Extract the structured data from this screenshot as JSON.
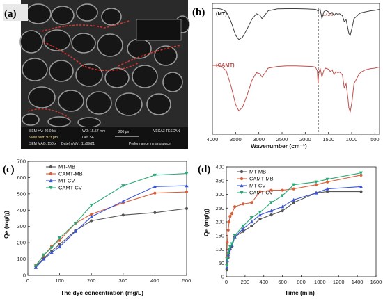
{
  "panels": {
    "a": {
      "label": "(a)"
    },
    "b": {
      "label": "(b)"
    },
    "c": {
      "label": "(c)"
    },
    "d": {
      "label": "(d)"
    }
  },
  "sem": {
    "hv_label": "SEM HV: 20.0 kV",
    "wd_label": "WD: 15.57 mm",
    "scale_value": "200 μm",
    "brand": "VEGA3 TESCAN",
    "view_field": "View field: 923 μm",
    "det": "Det: SE",
    "mag": "SEM MAG: 150 x",
    "date": "Date(m/d/y): 11/09/21",
    "perf": "Performance in nanospace"
  },
  "chart_data": [
    {
      "panel": "b",
      "type": "line",
      "xlabel": "Wavenumber (cm⁻¹)",
      "xlim": [
        4000,
        400
      ],
      "xticks": [
        4000,
        3500,
        3000,
        2500,
        2000,
        1500,
        1000,
        500
      ],
      "annotation": "1725",
      "annotation_x": 1725,
      "series": [
        {
          "name": "(MT)",
          "color": "#404040",
          "points": [
            [
              4000,
              0.97
            ],
            [
              3900,
              0.97
            ],
            [
              3800,
              0.955
            ],
            [
              3700,
              0.9
            ],
            [
              3600,
              0.7
            ],
            [
              3500,
              0.42
            ],
            [
              3430,
              0.33
            ],
            [
              3350,
              0.38
            ],
            [
              3250,
              0.55
            ],
            [
              3150,
              0.75
            ],
            [
              3050,
              0.86
            ],
            [
              2980,
              0.83
            ],
            [
              2930,
              0.76
            ],
            [
              2880,
              0.82
            ],
            [
              2800,
              0.92
            ],
            [
              2600,
              0.96
            ],
            [
              2400,
              0.965
            ],
            [
              2200,
              0.965
            ],
            [
              2000,
              0.96
            ],
            [
              1850,
              0.955
            ],
            [
              1780,
              0.95
            ],
            [
              1740,
              0.93
            ],
            [
              1725,
              0.9
            ],
            [
              1710,
              0.93
            ],
            [
              1680,
              0.95
            ],
            [
              1640,
              0.76
            ],
            [
              1600,
              0.9
            ],
            [
              1560,
              0.93
            ],
            [
              1500,
              0.9
            ],
            [
              1460,
              0.86
            ],
            [
              1420,
              0.89
            ],
            [
              1380,
              0.82
            ],
            [
              1340,
              0.87
            ],
            [
              1300,
              0.85
            ],
            [
              1260,
              0.86
            ],
            [
              1200,
              0.82
            ],
            [
              1160,
              0.7
            ],
            [
              1120,
              0.74
            ],
            [
              1080,
              0.55
            ],
            [
              1060,
              0.45
            ],
            [
              1030,
              0.42
            ],
            [
              990,
              0.58
            ],
            [
              950,
              0.76
            ],
            [
              900,
              0.8
            ],
            [
              850,
              0.85
            ],
            [
              800,
              0.88
            ],
            [
              700,
              0.9
            ],
            [
              600,
              0.92
            ],
            [
              500,
              0.93
            ],
            [
              400,
              0.95
            ]
          ]
        },
        {
          "name": "(CAMT)",
          "color": "#c0504d",
          "points": [
            [
              4000,
              0.95
            ],
            [
              3900,
              0.95
            ],
            [
              3800,
              0.93
            ],
            [
              3700,
              0.85
            ],
            [
              3600,
              0.58
            ],
            [
              3500,
              0.25
            ],
            [
              3430,
              0.13
            ],
            [
              3350,
              0.2
            ],
            [
              3250,
              0.42
            ],
            [
              3150,
              0.68
            ],
            [
              3050,
              0.82
            ],
            [
              2980,
              0.8
            ],
            [
              2930,
              0.74
            ],
            [
              2880,
              0.8
            ],
            [
              2800,
              0.9
            ],
            [
              2600,
              0.93
            ],
            [
              2400,
              0.94
            ],
            [
              2200,
              0.94
            ],
            [
              2000,
              0.935
            ],
            [
              1850,
              0.93
            ],
            [
              1780,
              0.92
            ],
            [
              1740,
              0.85
            ],
            [
              1725,
              0.62
            ],
            [
              1710,
              0.8
            ],
            [
              1680,
              0.9
            ],
            [
              1640,
              0.74
            ],
            [
              1600,
              0.86
            ],
            [
              1560,
              0.9
            ],
            [
              1500,
              0.88
            ],
            [
              1460,
              0.84
            ],
            [
              1420,
              0.87
            ],
            [
              1380,
              0.78
            ],
            [
              1340,
              0.84
            ],
            [
              1300,
              0.82
            ],
            [
              1260,
              0.83
            ],
            [
              1200,
              0.78
            ],
            [
              1160,
              0.55
            ],
            [
              1120,
              0.62
            ],
            [
              1080,
              0.35
            ],
            [
              1060,
              0.18
            ],
            [
              1030,
              0.12
            ],
            [
              990,
              0.32
            ],
            [
              950,
              0.62
            ],
            [
              900,
              0.7
            ],
            [
              850,
              0.78
            ],
            [
              800,
              0.83
            ],
            [
              700,
              0.87
            ],
            [
              600,
              0.89
            ],
            [
              500,
              0.9
            ],
            [
              400,
              0.92
            ]
          ]
        }
      ]
    },
    {
      "panel": "c",
      "type": "line",
      "xlabel": "The dye concentration (mg/L)",
      "ylabel": "Qe (mg/g)",
      "xlim": [
        0,
        500
      ],
      "ylim": [
        0,
        700
      ],
      "xticks": [
        0,
        100,
        200,
        300,
        400,
        500
      ],
      "yticks": [
        0,
        100,
        200,
        300,
        400,
        500,
        600,
        700
      ],
      "legend": "top-left",
      "x": [
        25,
        50,
        75,
        100,
        150,
        200,
        300,
        400,
        500
      ],
      "series": [
        {
          "name": "MT-MB",
          "color": "#555555",
          "marker": "circle",
          "values": [
            55,
            105,
            150,
            190,
            275,
            335,
            370,
            385,
            410
          ]
        },
        {
          "name": "CAMT-MB",
          "color": "#d95f3b",
          "marker": "circle",
          "values": [
            62,
            120,
            180,
            215,
            320,
            375,
            445,
            505,
            512
          ]
        },
        {
          "name": "MT-CV",
          "color": "#3a54d8",
          "marker": "triangle",
          "values": [
            48,
            100,
            140,
            175,
            270,
            360,
            455,
            545,
            550
          ]
        },
        {
          "name": "CAMT-CV",
          "color": "#2aa876",
          "marker": "triangle-down",
          "values": [
            58,
            125,
            170,
            230,
            320,
            430,
            550,
            615,
            625
          ]
        }
      ]
    },
    {
      "panel": "d",
      "type": "line",
      "xlabel": "Time (min)",
      "ylabel": "Qe (mg/g)",
      "xlim": [
        0,
        1600
      ],
      "ylim": [
        0,
        400
      ],
      "xticks": [
        0,
        200,
        400,
        600,
        800,
        1000,
        1200,
        1400,
        1600
      ],
      "yticks": [
        0,
        50,
        100,
        150,
        200,
        250,
        300,
        350,
        400
      ],
      "legend": "top-left",
      "x": [
        5,
        10,
        20,
        30,
        40,
        60,
        90,
        180,
        270,
        360,
        480,
        600,
        720,
        960,
        1080,
        1440
      ],
      "series": [
        {
          "name": "MT-MB",
          "color": "#555555",
          "marker": "circle",
          "values": [
            25,
            55,
            70,
            85,
            100,
            110,
            145,
            165,
            185,
            210,
            225,
            240,
            270,
            305,
            310,
            310
          ]
        },
        {
          "name": "CAMT-MB",
          "color": "#d95f3b",
          "marker": "circle",
          "values": [
            70,
            125,
            170,
            200,
            220,
            230,
            255,
            265,
            270,
            310,
            315,
            315,
            320,
            335,
            345,
            370
          ]
        },
        {
          "name": "MT-CV",
          "color": "#3a54d8",
          "marker": "triangle",
          "values": [
            35,
            60,
            80,
            95,
            105,
            115,
            145,
            175,
            200,
            225,
            240,
            255,
            280,
            305,
            320,
            328
          ]
        },
        {
          "name": "CAMT-CV",
          "color": "#2aa876",
          "marker": "triangle-down",
          "values": [
            40,
            65,
            85,
            100,
            110,
            120,
            150,
            185,
            215,
            235,
            270,
            295,
            335,
            345,
            355,
            378
          ]
        }
      ]
    }
  ]
}
